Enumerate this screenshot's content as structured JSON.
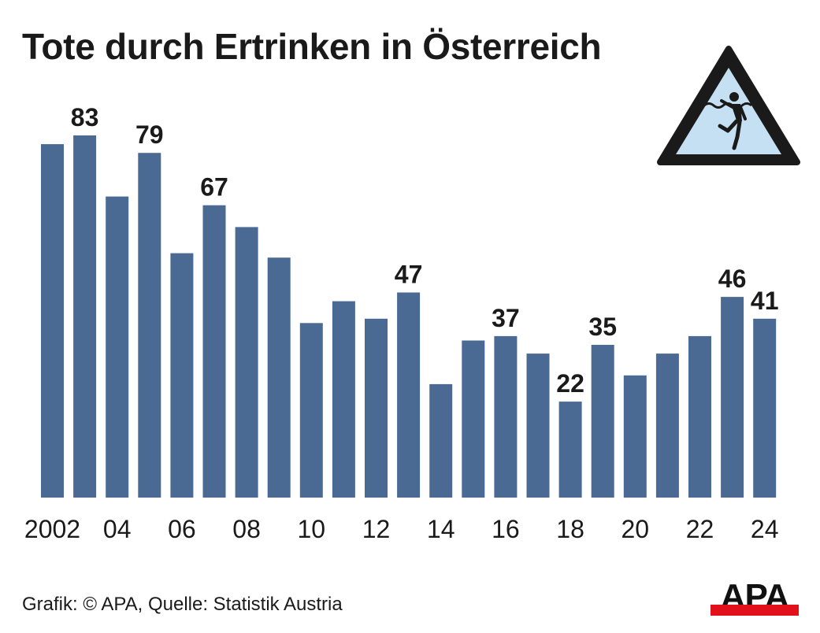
{
  "header": {
    "title": "Tote durch Ertrinken in Österreich"
  },
  "warning_sign": {
    "icon": "drowning-warning-icon",
    "fill": "#c5e0f2",
    "border": "#1a1a1a"
  },
  "colors": {
    "bar": "#4a6a93",
    "text": "#1a1a1a",
    "logo_red": "#e2101a"
  },
  "chart_data": {
    "type": "bar",
    "title": "Tote durch Ertrinken in Österreich",
    "xlabel": "",
    "ylabel": "",
    "ylim": [
      0,
      100
    ],
    "grid": false,
    "x": [
      2002,
      2003,
      2004,
      2005,
      2006,
      2007,
      2008,
      2009,
      2010,
      2011,
      2012,
      2013,
      2014,
      2015,
      2016,
      2017,
      2018,
      2019,
      2020,
      2021,
      2022,
      2023,
      2024
    ],
    "values": [
      81,
      83,
      69,
      79,
      56,
      67,
      62,
      55,
      40,
      45,
      41,
      47,
      26,
      36,
      37,
      33,
      22,
      35,
      28,
      33,
      37,
      46,
      41
    ],
    "tick_labels": [
      "2002",
      "",
      "04",
      "",
      "06",
      "",
      "08",
      "",
      "10",
      "",
      "12",
      "",
      "14",
      "",
      "16",
      "",
      "18",
      "",
      "20",
      "",
      "22",
      "",
      "24"
    ],
    "data_labels": [
      "",
      "83",
      "",
      "79",
      "",
      "67",
      "",
      "",
      "",
      "",
      "",
      "47",
      "",
      "",
      "37",
      "",
      "22",
      "35",
      "",
      "",
      "",
      "46",
      "41"
    ]
  },
  "footer": {
    "source": "Grafik: © APA, Quelle: Statistik Austria"
  },
  "logo": {
    "text": "APA"
  }
}
